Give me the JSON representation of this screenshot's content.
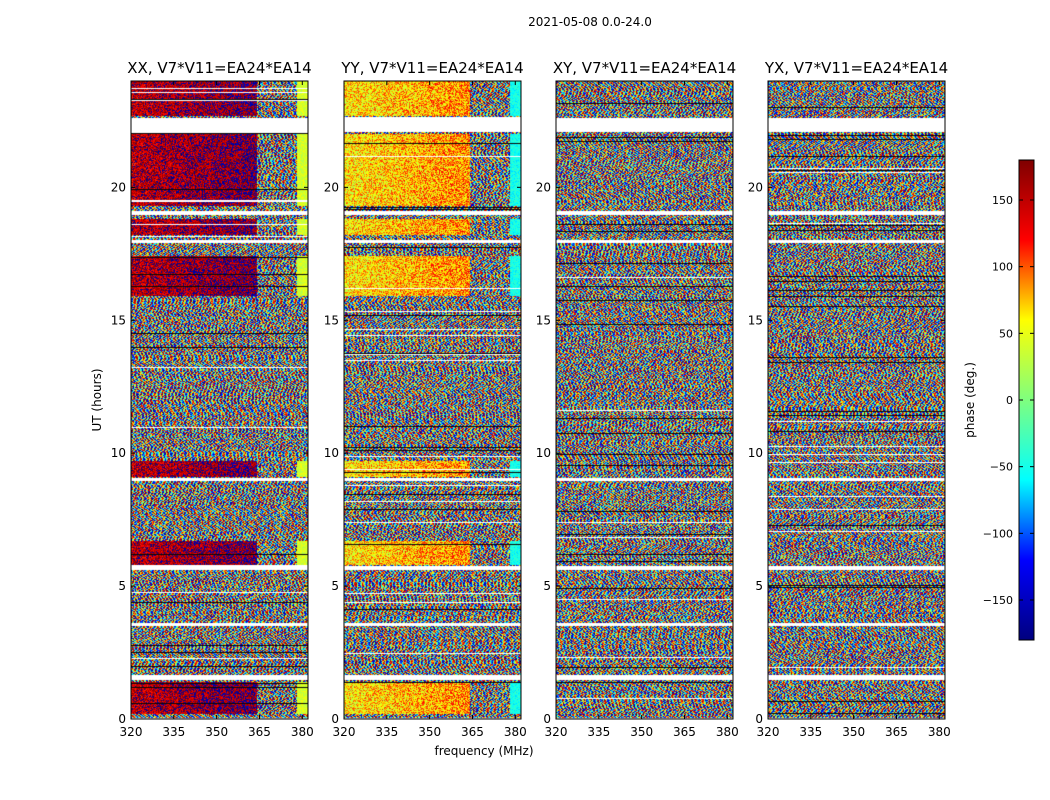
{
  "figure": {
    "suptitle": "2021-05-08 0.0-24.0",
    "xlabel": "frequency (MHz)",
    "ylabel": "UT (hours)"
  },
  "colorbar": {
    "label": "phase (deg.)",
    "range": [
      -180,
      180
    ],
    "ticks": [
      150,
      100,
      50,
      0,
      -50,
      -100,
      -150
    ],
    "tick_labels": [
      "150",
      "100",
      "50",
      "0",
      "−50",
      "−100",
      "−150"
    ],
    "colormap": [
      "#00007f",
      "#0000ff",
      "#00ffff",
      "#7fff7f",
      "#ffff00",
      "#ff0000",
      "#7f0000"
    ]
  },
  "chart_data": {
    "type": "heatmap",
    "description_of_values": "phase (deg.) vs frequency and UT",
    "xlim": [
      320,
      382
    ],
    "ylim": [
      0,
      24
    ],
    "x_ticks": [
      320,
      335,
      350,
      365,
      380
    ],
    "x_tick_labels": [
      "320",
      "335",
      "350",
      "365",
      "380"
    ],
    "y_ticks": [
      0,
      5,
      10,
      15,
      20
    ],
    "y_tick_labels": [
      "0",
      "5",
      "10",
      "15",
      "20"
    ],
    "panels": [
      {
        "title": "XX, V7*V11=EA24*EA14",
        "coherent_phase_below_MHz": 364,
        "coherent_phase_deg": 150
      },
      {
        "title": "YY, V7*V11=EA24*EA14",
        "coherent_phase_below_MHz": 364,
        "coherent_phase_deg": 60
      },
      {
        "title": "XY, V7*V11=EA24*EA14",
        "coherent_phase_below_MHz": null,
        "coherent_phase_deg": null
      },
      {
        "title": "YX, V7*V11=EA24*EA14",
        "coherent_phase_below_MHz": null,
        "coherent_phase_deg": null
      }
    ],
    "coherent_time_ranges_hours": [
      [
        0.2,
        1.4
      ],
      [
        5.8,
        6.7
      ],
      [
        9.1,
        9.7
      ],
      [
        15.9,
        17.4
      ],
      [
        18.2,
        18.8
      ],
      [
        19.3,
        22.0
      ],
      [
        22.7,
        24.0
      ]
    ],
    "flagged_time_ranges_hours": [
      [
        0.0,
        0.05
      ],
      [
        1.45,
        1.65
      ],
      [
        3.5,
        3.6
      ],
      [
        5.6,
        5.75
      ],
      [
        8.95,
        9.05
      ],
      [
        17.9,
        18.0
      ],
      [
        18.95,
        19.1
      ],
      [
        22.1,
        22.6
      ]
    ]
  }
}
